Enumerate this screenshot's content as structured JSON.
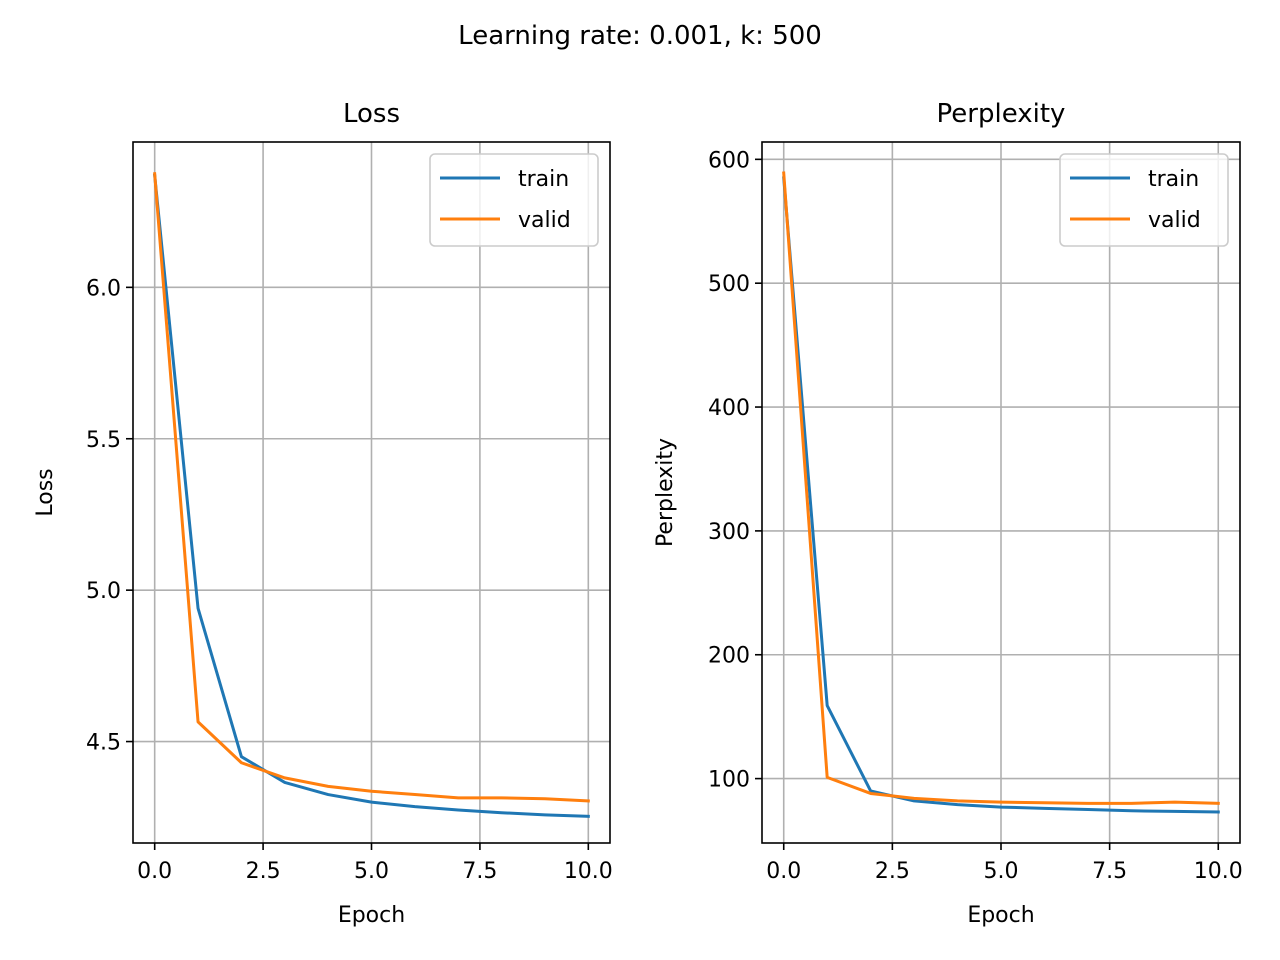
{
  "figure": {
    "suptitle": "Learning rate: 0.001, k: 500"
  },
  "chart_data": [
    {
      "type": "line",
      "title": "Loss",
      "xlabel": "Epoch",
      "ylabel": "Loss",
      "xlim": [
        -0.5,
        10.5
      ],
      "ylim": [
        4.165,
        6.48
      ],
      "xticks": [
        0.0,
        2.5,
        5.0,
        7.5,
        10.0
      ],
      "xtick_labels": [
        "0.0",
        "2.5",
        "5.0",
        "7.5",
        "10.0"
      ],
      "yticks": [
        4.5,
        5.0,
        5.5,
        6.0
      ],
      "ytick_labels": [
        "4.5",
        "5.0",
        "5.5",
        "6.0"
      ],
      "grid": true,
      "legend": "top-right",
      "x": [
        0,
        1,
        2,
        3,
        4,
        5,
        6,
        7,
        8,
        9,
        10
      ],
      "series": [
        {
          "name": "train",
          "color": "#1f77b4",
          "values": [
            6.37,
            4.94,
            4.45,
            4.365,
            4.325,
            4.3,
            4.285,
            4.274,
            4.265,
            4.258,
            4.253
          ]
        },
        {
          "name": "valid",
          "color": "#ff7f0e",
          "values": [
            6.375,
            4.565,
            4.43,
            4.38,
            4.352,
            4.336,
            4.325,
            4.314,
            4.314,
            4.311,
            4.304
          ]
        }
      ]
    },
    {
      "type": "line",
      "title": "Perplexity",
      "xlabel": "Epoch",
      "ylabel": "Perplexity",
      "xlim": [
        -0.5,
        10.5
      ],
      "ylim": [
        48,
        614
      ],
      "xticks": [
        0.0,
        2.5,
        5.0,
        7.5,
        10.0
      ],
      "xtick_labels": [
        "0.0",
        "2.5",
        "5.0",
        "7.5",
        "10.0"
      ],
      "yticks": [
        100,
        200,
        300,
        400,
        500,
        600
      ],
      "ytick_labels": [
        "100",
        "200",
        "300",
        "400",
        "500",
        "600"
      ],
      "grid": true,
      "legend": "top-right",
      "x": [
        0,
        1,
        2,
        3,
        4,
        5,
        6,
        7,
        8,
        9,
        10
      ],
      "series": [
        {
          "name": "train",
          "color": "#1f77b4",
          "values": [
            585,
            159,
            90,
            82,
            79,
            77,
            76,
            75,
            74,
            73.5,
            73
          ]
        },
        {
          "name": "valid",
          "color": "#ff7f0e",
          "values": [
            589,
            101,
            88,
            84,
            82,
            81,
            80.5,
            80,
            80,
            81,
            80
          ]
        }
      ]
    }
  ]
}
